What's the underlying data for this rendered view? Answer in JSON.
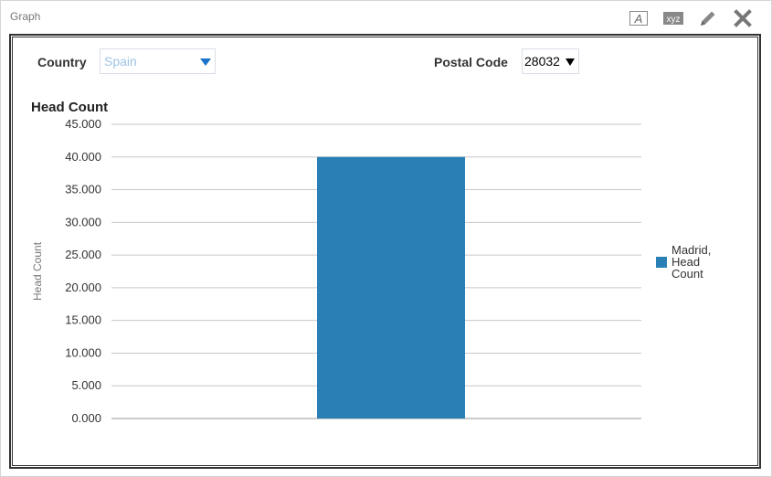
{
  "panel": {
    "title": "Graph"
  },
  "toolbar": {
    "format_label": "A",
    "xyz_label": "xyz"
  },
  "filters": {
    "country_label": "Country",
    "country_value": "Spain",
    "postal_label": "Postal Code",
    "postal_value": "28032"
  },
  "colors": {
    "bar": "#2a7fb5",
    "grid": "#c8c8c8"
  },
  "chart_data": {
    "type": "bar",
    "title": "Head Count",
    "ylabel": "Head Count",
    "xlabel": "",
    "categories": [
      ""
    ],
    "series": [
      {
        "name": "Madrid, Head Count",
        "values": [
          40000
        ]
      }
    ],
    "ylim": [
      0,
      45000
    ],
    "yticks": [
      "0.000",
      "5.000",
      "10.000",
      "15.000",
      "20.000",
      "25.000",
      "30.000",
      "35.000",
      "40.000",
      "45.000"
    ],
    "grid": true,
    "legend_position": "right",
    "legend_lines": [
      "Madrid,",
      "Head",
      "Count"
    ]
  }
}
